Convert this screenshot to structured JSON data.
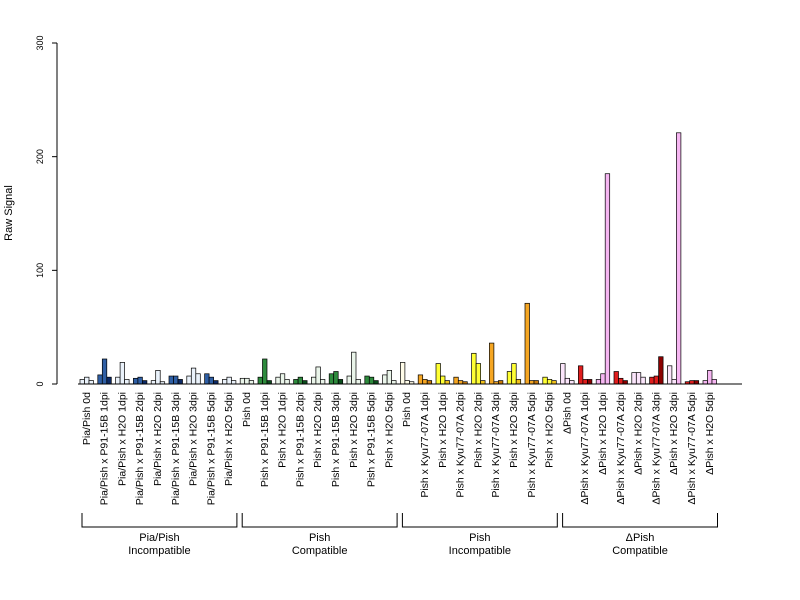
{
  "chart_data": {
    "type": "bar",
    "ylabel": "Raw Signal",
    "ylim": [
      0,
      300
    ],
    "yticks": [
      0,
      100,
      200,
      300
    ],
    "palettes": {
      "blue": [
        "#eaf2fb",
        "#2f5fa5",
        "#0d2a66"
      ],
      "green": [
        "#eaf5ea",
        "#2e8b3d",
        "#0b4d1c"
      ],
      "yellow": [
        "#fffce8",
        "#ffff33",
        "#f2c21b"
      ],
      "orange": [
        "#fff0d6",
        "#f5a623",
        "#c97a0a"
      ],
      "red": [
        "#ffe5e5",
        "#e01d1d",
        "#8b0000"
      ],
      "pink": [
        "#fbe5fb",
        "#f6b6f2",
        "#c070c0"
      ]
    },
    "categories": [
      {
        "label": "Pia/Pish 0d",
        "values": [
          4,
          6,
          3
        ],
        "colors": [
          "#eaf2fb",
          "#eaf2fb",
          "#eaf2fb"
        ]
      },
      {
        "label": "Pia/Pish x P91-15B 1dpi",
        "values": [
          8,
          22,
          6
        ],
        "colors": [
          "#2f5fa5",
          "#2f5fa5",
          "#0d2a66"
        ]
      },
      {
        "label": "Pia/Pish x H2O 1dpi",
        "values": [
          6,
          19,
          4
        ],
        "colors": [
          "#eaf2fb",
          "#eaf2fb",
          "#eaf2fb"
        ]
      },
      {
        "label": "Pia/Pish x P91-15B 2dpi",
        "values": [
          5,
          6,
          3
        ],
        "colors": [
          "#2f5fa5",
          "#2f5fa5",
          "#0d2a66"
        ]
      },
      {
        "label": "Pia/Pish x H2O 2dpi",
        "values": [
          3,
          12,
          2
        ],
        "colors": [
          "#eaf2fb",
          "#eaf2fb",
          "#eaf2fb"
        ]
      },
      {
        "label": "Pia/Pish x P91-15B 3dpi",
        "values": [
          7,
          7,
          4
        ],
        "colors": [
          "#2f5fa5",
          "#2f5fa5",
          "#0d2a66"
        ]
      },
      {
        "label": "Pia/Pish x H2O 3dpi",
        "values": [
          7,
          14,
          9
        ],
        "colors": [
          "#eaf2fb",
          "#eaf2fb",
          "#eaf2fb"
        ]
      },
      {
        "label": "Pia/Pish x P91-15B 5dpi",
        "values": [
          9,
          6,
          3
        ],
        "colors": [
          "#2f5fa5",
          "#2f5fa5",
          "#0d2a66"
        ]
      },
      {
        "label": "Pia/Pish x H2O 5dpi",
        "values": [
          4,
          6,
          3
        ],
        "colors": [
          "#eaf2fb",
          "#eaf2fb",
          "#eaf2fb"
        ]
      },
      {
        "label": "Pish 0d",
        "values": [
          5,
          5,
          3
        ],
        "colors": [
          "#eaf5ea",
          "#eaf5ea",
          "#eaf5ea"
        ]
      },
      {
        "label": "Pish x P91-15B 1dpi",
        "values": [
          6,
          22,
          3
        ],
        "colors": [
          "#2e8b3d",
          "#2e8b3d",
          "#0b4d1c"
        ]
      },
      {
        "label": "Pish x H2O 1dpi",
        "values": [
          6,
          9,
          4
        ],
        "colors": [
          "#eaf5ea",
          "#eaf5ea",
          "#eaf5ea"
        ]
      },
      {
        "label": "Pish x P91-15B 2dpi",
        "values": [
          4,
          6,
          3
        ],
        "colors": [
          "#2e8b3d",
          "#2e8b3d",
          "#0b4d1c"
        ]
      },
      {
        "label": "Pish x H2O 2dpi",
        "values": [
          6,
          15,
          4
        ],
        "colors": [
          "#eaf5ea",
          "#eaf5ea",
          "#eaf5ea"
        ]
      },
      {
        "label": "Pish x P91-15B 3dpi",
        "values": [
          9,
          11,
          4
        ],
        "colors": [
          "#2e8b3d",
          "#2e8b3d",
          "#0b4d1c"
        ]
      },
      {
        "label": "Pish x H2O 3dpi",
        "values": [
          7,
          28,
          4
        ],
        "colors": [
          "#eaf5ea",
          "#eaf5ea",
          "#eaf5ea"
        ]
      },
      {
        "label": "Pish x P91-15B 5dpi",
        "values": [
          7,
          6,
          3
        ],
        "colors": [
          "#2e8b3d",
          "#2e8b3d",
          "#0b4d1c"
        ]
      },
      {
        "label": "Pish x H2O 5dpi",
        "values": [
          8,
          12,
          3
        ],
        "colors": [
          "#eaf5ea",
          "#eaf5ea",
          "#eaf5ea"
        ]
      },
      {
        "label": "Pish 0d",
        "values": [
          19,
          3,
          2
        ],
        "colors": [
          "#fffce8",
          "#fffce8",
          "#fffce8"
        ]
      },
      {
        "label": "Pish x Kyu77-07A 1dpi",
        "values": [
          8,
          4,
          3
        ],
        "colors": [
          "#f5a623",
          "#f5a623",
          "#c97a0a"
        ]
      },
      {
        "label": "Pish x H2O 1dpi",
        "values": [
          18,
          7,
          3
        ],
        "colors": [
          "#ffff33",
          "#ffff33",
          "#f2c21b"
        ]
      },
      {
        "label": "Pish x Kyu77-07A 2dpi",
        "values": [
          6,
          3,
          2
        ],
        "colors": [
          "#f5a623",
          "#f5a623",
          "#c97a0a"
        ]
      },
      {
        "label": "Pish x H2O 2dpi",
        "values": [
          27,
          18,
          3
        ],
        "colors": [
          "#ffff33",
          "#ffff33",
          "#f2c21b"
        ]
      },
      {
        "label": "Pish x Kyu77-07A 3dpi",
        "values": [
          36,
          2,
          3
        ],
        "colors": [
          "#f5a623",
          "#f5a623",
          "#c97a0a"
        ]
      },
      {
        "label": "Pish x H2O 3dpi",
        "values": [
          11,
          18,
          4
        ],
        "colors": [
          "#ffff33",
          "#ffff33",
          "#f2c21b"
        ]
      },
      {
        "label": "Pish x Kyu77-07A 5dpi",
        "values": [
          71,
          3,
          3
        ],
        "colors": [
          "#f5a623",
          "#f5a623",
          "#c97a0a"
        ]
      },
      {
        "label": "Pish x H2O 5dpi",
        "values": [
          6,
          4,
          3
        ],
        "colors": [
          "#ffff33",
          "#ffff33",
          "#f2c21b"
        ]
      },
      {
        "label": "ΔPish 0d",
        "values": [
          18,
          5,
          3
        ],
        "colors": [
          "#fbe5fb",
          "#fbe5fb",
          "#fbe5fb"
        ]
      },
      {
        "label": "ΔPish x Kyu77-07A 1dpi",
        "values": [
          16,
          4,
          4
        ],
        "colors": [
          "#e01d1d",
          "#e01d1d",
          "#8b0000"
        ]
      },
      {
        "label": "ΔPish x H2O 1dpi",
        "values": [
          4,
          9,
          185
        ],
        "colors": [
          "#f6b6f2",
          "#f6b6f2",
          "#f6b6f2"
        ]
      },
      {
        "label": "ΔPish x Kyu77-07A 2dpi",
        "values": [
          11,
          5,
          3
        ],
        "colors": [
          "#e01d1d",
          "#e01d1d",
          "#8b0000"
        ]
      },
      {
        "label": "ΔPish x H2O 2dpi",
        "values": [
          10,
          10,
          6
        ],
        "colors": [
          "#fbe5fb",
          "#fbe5fb",
          "#fbe5fb"
        ]
      },
      {
        "label": "ΔPish x Kyu77-07A 3dpi",
        "values": [
          6,
          7,
          24
        ],
        "colors": [
          "#e01d1d",
          "#e01d1d",
          "#8b0000"
        ]
      },
      {
        "label": "ΔPish x H2O 3dpi",
        "values": [
          16,
          4,
          221
        ],
        "colors": [
          "#fbe5fb",
          "#fbe5fb",
          "#f6b6f2"
        ]
      },
      {
        "label": "ΔPish x Kyu77-07A 5dpi",
        "values": [
          2,
          3,
          3
        ],
        "colors": [
          "#e01d1d",
          "#e01d1d",
          "#8b0000"
        ]
      },
      {
        "label": "ΔPish x H2O 5dpi",
        "values": [
          3,
          12,
          4
        ],
        "colors": [
          "#f6b6f2",
          "#f6b6f2",
          "#f6b6f2"
        ]
      }
    ],
    "groups": [
      {
        "line1": "Pia/Pish",
        "line2": "Incompatible",
        "from": 0,
        "to": 8
      },
      {
        "line1": "Pish",
        "line2": "Compatible",
        "from": 9,
        "to": 17
      },
      {
        "line1": "Pish",
        "line2": "Incompatible",
        "from": 18,
        "to": 26
      },
      {
        "line1": "ΔPish",
        "line2": "Compatible",
        "from": 27,
        "to": 35
      }
    ]
  }
}
